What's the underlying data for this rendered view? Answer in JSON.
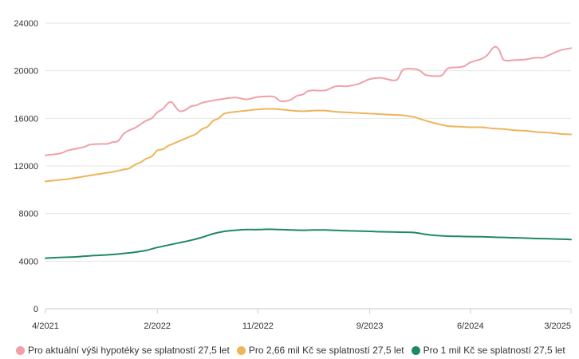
{
  "chart_data": {
    "type": "line",
    "title": "",
    "xlabel": "",
    "ylabel": "",
    "ylim": [
      0,
      24000
    ],
    "y_ticks": [
      0,
      4000,
      8000,
      12000,
      16000,
      20000,
      24000
    ],
    "y_tick_labels": [
      "0",
      "4000",
      "8000",
      "12000",
      "16000",
      "20000",
      "24000"
    ],
    "x_range": [
      0,
      47
    ],
    "x_ticks": [
      0,
      10,
      19,
      29,
      38,
      47
    ],
    "x_tick_labels": [
      "4/2021",
      "2/2022",
      "11/2022",
      "9/2023",
      "6/2024",
      "3/2025"
    ],
    "grid": true,
    "legend_position": "bottom",
    "series": [
      {
        "name": "Pro aktuální výši hypotéky se splatností 27,5 let",
        "color": "#f0a0a8",
        "points": [
          [
            0,
            12900
          ],
          [
            1,
            13000
          ],
          [
            1.5,
            13100
          ],
          [
            2,
            13300
          ],
          [
            3,
            13500
          ],
          [
            3.5,
            13600
          ],
          [
            4,
            13800
          ],
          [
            5,
            13850
          ],
          [
            5.5,
            13850
          ],
          [
            6,
            14000
          ],
          [
            6.5,
            14100
          ],
          [
            7,
            14700
          ],
          [
            7.5,
            15000
          ],
          [
            8,
            15200
          ],
          [
            8.5,
            15500
          ],
          [
            9,
            15800
          ],
          [
            9.5,
            16000
          ],
          [
            10,
            16500
          ],
          [
            10.5,
            16800
          ],
          [
            11,
            17300
          ],
          [
            11.3,
            17350
          ],
          [
            11.6,
            17000
          ],
          [
            12,
            16600
          ],
          [
            12.5,
            16700
          ],
          [
            13,
            17000
          ],
          [
            13.5,
            17100
          ],
          [
            14,
            17300
          ],
          [
            15,
            17500
          ],
          [
            16,
            17650
          ],
          [
            17,
            17750
          ],
          [
            18,
            17600
          ],
          [
            19,
            17800
          ],
          [
            20,
            17850
          ],
          [
            20.5,
            17800
          ],
          [
            21,
            17450
          ],
          [
            21.5,
            17450
          ],
          [
            22,
            17600
          ],
          [
            22.5,
            17900
          ],
          [
            23,
            18000
          ],
          [
            23.5,
            18300
          ],
          [
            24,
            18350
          ],
          [
            25,
            18350
          ],
          [
            26,
            18700
          ],
          [
            27,
            18700
          ],
          [
            28,
            18900
          ],
          [
            28.5,
            19100
          ],
          [
            29,
            19300
          ],
          [
            30,
            19400
          ],
          [
            31,
            19200
          ],
          [
            31.5,
            19300
          ],
          [
            32,
            20100
          ],
          [
            33,
            20150
          ],
          [
            33.5,
            20000
          ],
          [
            34,
            19650
          ],
          [
            35,
            19550
          ],
          [
            35.5,
            19650
          ],
          [
            36,
            20200
          ],
          [
            37,
            20300
          ],
          [
            37.5,
            20400
          ],
          [
            38,
            20700
          ],
          [
            39,
            21000
          ],
          [
            39.5,
            21300
          ],
          [
            40,
            21900
          ],
          [
            40.3,
            22000
          ],
          [
            40.6,
            21700
          ],
          [
            41,
            20900
          ],
          [
            42,
            20900
          ],
          [
            43,
            20950
          ],
          [
            43.5,
            21050
          ],
          [
            44,
            21100
          ],
          [
            44.5,
            21100
          ],
          [
            45,
            21300
          ],
          [
            46,
            21700
          ],
          [
            47,
            21900
          ]
        ]
      },
      {
        "name": "Pro 2,66 mil Kč se splatností 27,5 let",
        "color": "#eeb45a",
        "points": [
          [
            0,
            10700
          ],
          [
            1,
            10800
          ],
          [
            2,
            10900
          ],
          [
            3,
            11050
          ],
          [
            4,
            11200
          ],
          [
            5,
            11350
          ],
          [
            6,
            11500
          ],
          [
            7,
            11700
          ],
          [
            7.5,
            11800
          ],
          [
            8,
            12100
          ],
          [
            8.5,
            12300
          ],
          [
            9,
            12600
          ],
          [
            9.5,
            12800
          ],
          [
            10,
            13300
          ],
          [
            10.5,
            13400
          ],
          [
            11,
            13700
          ],
          [
            11.5,
            13900
          ],
          [
            12,
            14100
          ],
          [
            12.5,
            14300
          ],
          [
            13,
            14500
          ],
          [
            13.5,
            14700
          ],
          [
            14,
            15100
          ],
          [
            14.5,
            15300
          ],
          [
            15,
            15800
          ],
          [
            15.5,
            16000
          ],
          [
            16,
            16400
          ],
          [
            17,
            16550
          ],
          [
            18,
            16650
          ],
          [
            19,
            16750
          ],
          [
            20,
            16800
          ],
          [
            21,
            16750
          ],
          [
            22,
            16650
          ],
          [
            23,
            16600
          ],
          [
            24,
            16650
          ],
          [
            25,
            16650
          ],
          [
            26,
            16550
          ],
          [
            27,
            16500
          ],
          [
            28,
            16450
          ],
          [
            29,
            16400
          ],
          [
            30,
            16350
          ],
          [
            31,
            16300
          ],
          [
            32,
            16250
          ],
          [
            33,
            16100
          ],
          [
            33.5,
            15950
          ],
          [
            34,
            15800
          ],
          [
            35,
            15550
          ],
          [
            36,
            15350
          ],
          [
            37,
            15300
          ],
          [
            38,
            15250
          ],
          [
            39,
            15250
          ],
          [
            40,
            15150
          ],
          [
            41,
            15100
          ],
          [
            42,
            15000
          ],
          [
            43,
            14950
          ],
          [
            44,
            14850
          ],
          [
            45,
            14800
          ],
          [
            46,
            14700
          ],
          [
            47,
            14650
          ]
        ]
      },
      {
        "name": "Pro 1 mil Kč se splatností 27,5 let",
        "color": "#1f8a60",
        "points": [
          [
            0,
            4250
          ],
          [
            1,
            4300
          ],
          [
            2,
            4330
          ],
          [
            3,
            4380
          ],
          [
            4,
            4450
          ],
          [
            5,
            4500
          ],
          [
            6,
            4560
          ],
          [
            7,
            4650
          ],
          [
            8,
            4750
          ],
          [
            9,
            4900
          ],
          [
            10,
            5150
          ],
          [
            11,
            5350
          ],
          [
            12,
            5550
          ],
          [
            13,
            5750
          ],
          [
            14,
            6000
          ],
          [
            15,
            6300
          ],
          [
            16,
            6500
          ],
          [
            17,
            6600
          ],
          [
            18,
            6650
          ],
          [
            19,
            6650
          ],
          [
            20,
            6680
          ],
          [
            21,
            6650
          ],
          [
            22,
            6620
          ],
          [
            23,
            6600
          ],
          [
            24,
            6620
          ],
          [
            25,
            6620
          ],
          [
            26,
            6580
          ],
          [
            27,
            6550
          ],
          [
            28,
            6530
          ],
          [
            29,
            6500
          ],
          [
            30,
            6470
          ],
          [
            31,
            6450
          ],
          [
            32,
            6430
          ],
          [
            33,
            6400
          ],
          [
            34,
            6250
          ],
          [
            35,
            6150
          ],
          [
            36,
            6100
          ],
          [
            37,
            6080
          ],
          [
            38,
            6060
          ],
          [
            39,
            6050
          ],
          [
            40,
            6020
          ],
          [
            41,
            5990
          ],
          [
            42,
            5960
          ],
          [
            43,
            5930
          ],
          [
            44,
            5900
          ],
          [
            45,
            5880
          ],
          [
            46,
            5850
          ],
          [
            47,
            5820
          ]
        ]
      }
    ]
  }
}
